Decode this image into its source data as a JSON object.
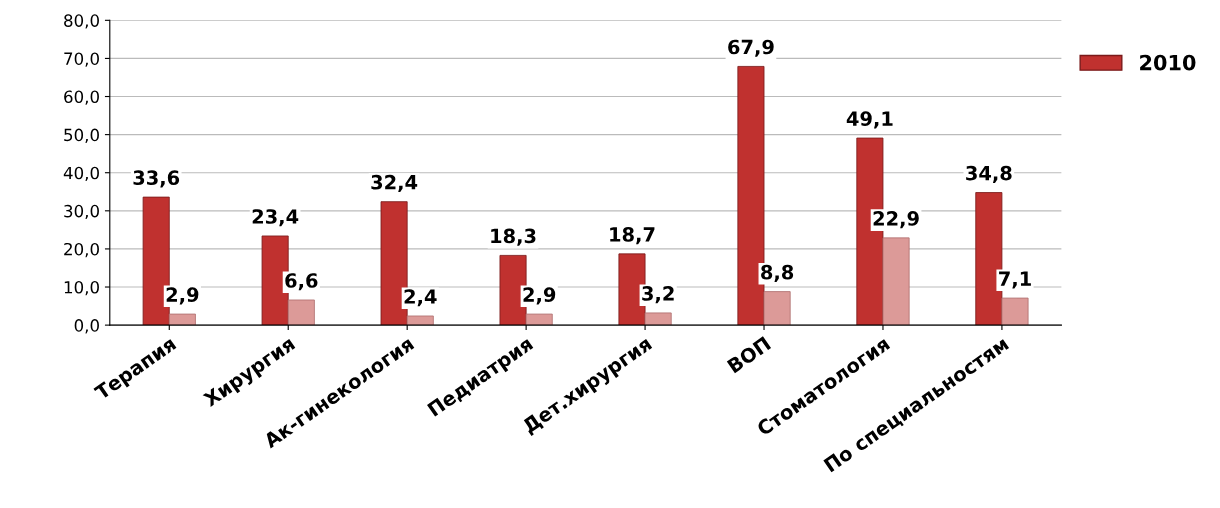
{
  "chart_data": {
    "type": "bar",
    "categories": [
      "Терапия",
      "Хирургия",
      "Ак-гинекология",
      "Педиатрия",
      "Дет.хирургия",
      "ВОП",
      "Стоматология",
      "По специальностям"
    ],
    "series": [
      {
        "name": "2010",
        "color": "#c0312f",
        "values": [
          33.6,
          23.4,
          32.4,
          18.3,
          18.7,
          67.9,
          49.1,
          34.8
        ],
        "value_labels": [
          "33,6",
          "23,4",
          "32,4",
          "18,3",
          "18,7",
          "67,9",
          "49,1",
          "34,8"
        ]
      },
      {
        "color": "#dc9a98",
        "values": [
          2.9,
          6.6,
          2.4,
          2.9,
          3.2,
          8.8,
          22.9,
          7.1
        ],
        "value_labels": [
          "2,9",
          "6,6",
          "2,4",
          "2,9",
          "3,2",
          "8,8",
          "22,9",
          "7,1"
        ]
      }
    ],
    "ylim": [
      0,
      80
    ],
    "yticks": [
      {
        "value": 0,
        "label": "0,0"
      },
      {
        "value": 10,
        "label": "10,0"
      },
      {
        "value": 20,
        "label": "20,0"
      },
      {
        "value": 30,
        "label": "30,0"
      },
      {
        "value": 40,
        "label": "40,0"
      },
      {
        "value": 50,
        "label": "50,0"
      },
      {
        "value": 60,
        "label": "60,0"
      },
      {
        "value": 70,
        "label": "70,0"
      },
      {
        "value": 80,
        "label": "80,0"
      }
    ],
    "grid": "y",
    "legend": "top right"
  }
}
